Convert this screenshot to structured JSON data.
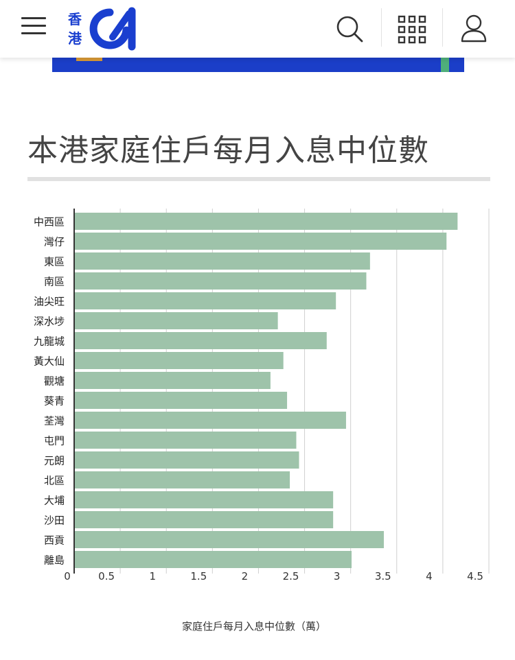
{
  "header": {
    "logo_text": [
      "香",
      "港"
    ],
    "logo_mark": "01",
    "icons": [
      "menu-icon",
      "search-icon",
      "apps-grid-icon",
      "user-icon"
    ]
  },
  "colors": {
    "brand": "#1a3fcf",
    "bar": "#9ec3aa",
    "banner": "#1b3ec8"
  },
  "chart_data": {
    "type": "bar",
    "orientation": "horizontal",
    "title": "本港家庭住戶每月入息中位數",
    "xlabel": "家庭住戶每月入息中位數（萬）",
    "ylabel": "",
    "categories": [
      "中西區",
      "灣仔",
      "東區",
      "南區",
      "油尖旺",
      "深水埗",
      "九龍城",
      "黃大仙",
      "觀塘",
      "葵青",
      "荃灣",
      "屯門",
      "元朗",
      "北區",
      "大埔",
      "沙田",
      "西貢",
      "離島"
    ],
    "values": [
      4.16,
      4.04,
      3.21,
      3.17,
      2.84,
      2.21,
      2.74,
      2.27,
      2.13,
      2.31,
      2.95,
      2.41,
      2.44,
      2.34,
      2.81,
      2.81,
      3.36,
      3.01
    ],
    "xlim": [
      0,
      4.5
    ],
    "xticks": [
      "0",
      "0.5",
      "1",
      "1.5",
      "2",
      "2.5",
      "3",
      "3.5",
      "4",
      "4.5"
    ],
    "grid": true,
    "legend": "none"
  }
}
